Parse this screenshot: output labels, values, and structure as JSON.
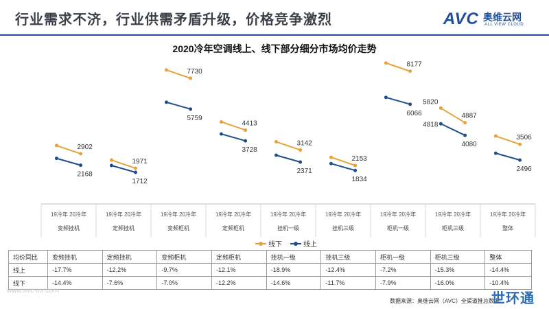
{
  "header": {
    "title": "行业需求不济，行业供需矛盾升级，价格竞争激烈",
    "logo": {
      "avc": "AVC",
      "cn": "奥维云网",
      "en": "ALL VIEW CLOUD"
    }
  },
  "colors": {
    "online": "#e8a23a",
    "offline": "#1f4e8c",
    "accent": "#1f4e9c"
  },
  "chart_data": {
    "type": "line",
    "title": "2020冷年空调线上、线下部分细分市场均价走势",
    "categories": [
      "变频挂机",
      "定频挂机",
      "变频柜机",
      "定频柜机",
      "挂机一级",
      "挂机三级",
      "柜机一级",
      "柜机三级",
      "整体"
    ],
    "x": [
      "19冷年",
      "20冷年"
    ],
    "x_tick_labels": [
      "19冷年 20冷年",
      "19冷年 20冷年",
      "19冷年 20冷年",
      "19冷年 20冷年",
      "19冷年 20冷年",
      "19冷年 20冷年",
      "19冷年 20冷年",
      "19冷年 20冷年",
      "19冷年 20冷年"
    ],
    "legend": {
      "position": "bottom-center",
      "items": [
        "线下",
        "线上"
      ]
    },
    "grid": false,
    "series": [
      {
        "name": "线下",
        "color": "#e8a23a",
        "points": [
          [
            null,
            2902
          ],
          [
            null,
            1971
          ],
          [
            null,
            7730
          ],
          [
            null,
            4413
          ],
          [
            null,
            3142
          ],
          [
            null,
            2153
          ],
          [
            null,
            8177
          ],
          [
            5820,
            4887
          ],
          [
            null,
            3506
          ]
        ]
      },
      {
        "name": "线上",
        "color": "#1f4e8c",
        "points": [
          [
            null,
            2168
          ],
          [
            null,
            1712
          ],
          [
            null,
            5759
          ],
          [
            null,
            3728
          ],
          [
            null,
            2371
          ],
          [
            null,
            1834
          ],
          [
            null,
            6066
          ],
          [
            4818,
            4080
          ],
          [
            null,
            2496
          ]
        ]
      }
    ]
  },
  "table": {
    "header": [
      "均价同比",
      "变频挂机",
      "定频挂机",
      "变频柜机",
      "定频柜机",
      "挂机一级",
      "挂机三级",
      "柜机一级",
      "柜机三级",
      "整体"
    ],
    "rows": [
      [
        "线上",
        "-17.7%",
        "-12.2%",
        "-9.7%",
        "-12.1%",
        "-18.9%",
        "-12.4%",
        "-7.2%",
        "-15.3%",
        "-14.4%"
      ],
      [
        "线下",
        "-14.4%",
        "-7.6%",
        "-7.0%",
        "-12.2%",
        "-14.6%",
        "-11.7%",
        "-7.9%",
        "-16.0%",
        "-10.4%"
      ]
    ]
  },
  "footer": {
    "source": "数据来源：奥维云网（AVC）全渠道推总数据",
    "watermark_url": "www.avc-mr.com",
    "corner_logo": "世环通"
  }
}
